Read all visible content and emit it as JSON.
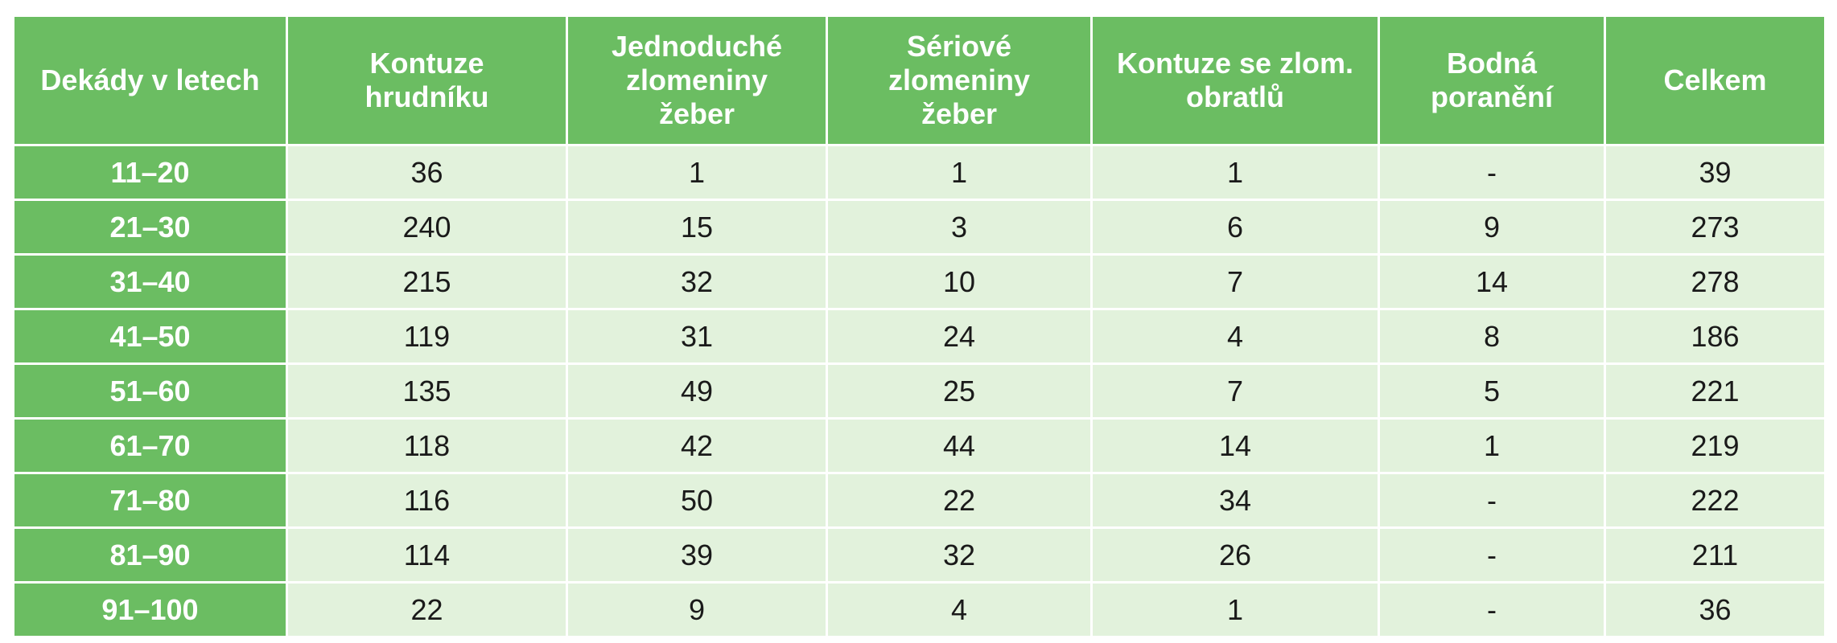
{
  "table": {
    "header_row_label": "Dekády v letech",
    "columns": [
      [
        "Kontuze",
        "hrudníku"
      ],
      [
        "Jednoduché",
        "zlomeniny",
        "žeber"
      ],
      [
        "Sériové",
        "zlomeniny",
        "žeber"
      ],
      [
        "Kontuze se zlom.",
        "obratlů"
      ],
      [
        "Bodná",
        "poranění"
      ],
      [
        "Celkem"
      ]
    ],
    "rows": [
      {
        "label": "11–20",
        "cells": [
          "36",
          "1",
          "1",
          "1",
          "-",
          "39"
        ]
      },
      {
        "label": "21–30",
        "cells": [
          "240",
          "15",
          "3",
          "6",
          "9",
          "273"
        ]
      },
      {
        "label": "31–40",
        "cells": [
          "215",
          "32",
          "10",
          "7",
          "14",
          "278"
        ]
      },
      {
        "label": "41–50",
        "cells": [
          "119",
          "31",
          "24",
          "4",
          "8",
          "186"
        ]
      },
      {
        "label": "51–60",
        "cells": [
          "135",
          "49",
          "25",
          "7",
          "5",
          "221"
        ]
      },
      {
        "label": "61–70",
        "cells": [
          "118",
          "42",
          "44",
          "14",
          "1",
          "219"
        ]
      },
      {
        "label": "71–80",
        "cells": [
          "116",
          "50",
          "22",
          "34",
          "-",
          "222"
        ]
      },
      {
        "label": "81–90",
        "cells": [
          "114",
          "39",
          "32",
          "26",
          "-",
          "211"
        ]
      },
      {
        "label": "91–100",
        "cells": [
          "22",
          "9",
          "4",
          "1",
          "-",
          "36"
        ]
      }
    ]
  },
  "colors": {
    "header_green": "#6bbd62",
    "cell_light_green": "#e2f2dc",
    "header_text": "#ffffff",
    "cell_text": "#1a1a1a"
  }
}
